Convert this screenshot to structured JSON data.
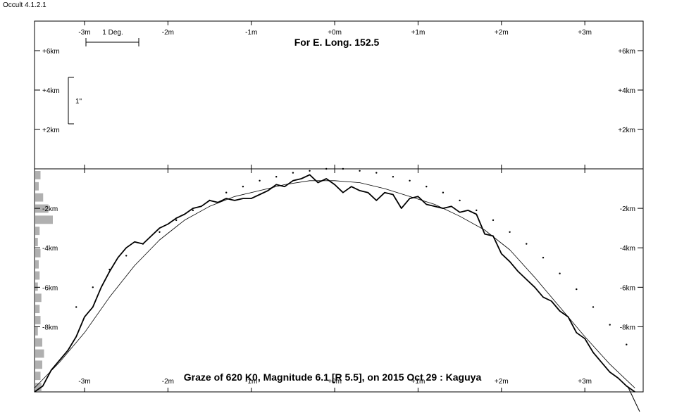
{
  "window": {
    "title": "Occult 4.1.2.1"
  },
  "chart_data": {
    "type": "line",
    "title": "For E. Long. 152.5",
    "footer": "Graze of  620 K0,  Magnitude 6.1 [R 5.5],  on 2015 Oct 29  :  Kaguya",
    "scale_bar_horizontal": "1 Deg.",
    "scale_bar_vertical": "1\"",
    "x_axis": {
      "unit": "minutes",
      "range": [
        -3.6,
        3.7
      ],
      "ticks": [
        -3,
        -2,
        -1,
        0,
        1,
        2,
        3
      ],
      "tick_labels": [
        "-3m",
        "-2m",
        "-1m",
        "+0m",
        "+1m",
        "+2m",
        "+3m"
      ]
    },
    "upper_panel": {
      "y_range_km": [
        0,
        7.5
      ],
      "ticks": [
        6,
        4,
        2
      ],
      "tick_labels": [
        "+6km",
        "+4km",
        "+2km"
      ]
    },
    "lower_panel": {
      "y_range_km": [
        0,
        -11.3
      ],
      "ticks": [
        -2,
        -4,
        -6,
        -8
      ],
      "tick_labels": [
        "-2km",
        "-4km",
        "-6km",
        "-8km"
      ]
    },
    "series": [
      {
        "style": "profile",
        "x": [
          -3.6,
          -3.5,
          -3.4,
          -3.3,
          -3.2,
          -3.1,
          -3.0,
          -2.9,
          -2.8,
          -2.7,
          -2.6,
          -2.5,
          -2.4,
          -2.3,
          -2.2,
          -2.1,
          -2.0,
          -1.9,
          -1.8,
          -1.7,
          -1.6,
          -1.5,
          -1.4,
          -1.3,
          -1.2,
          -1.1,
          -1.0,
          -0.9,
          -0.8,
          -0.7,
          -0.6,
          -0.5,
          -0.4,
          -0.3,
          -0.2,
          -0.1,
          0.0,
          0.1,
          0.2,
          0.3,
          0.4,
          0.5,
          0.6,
          0.7,
          0.8,
          0.9,
          1.0,
          1.1,
          1.2,
          1.3,
          1.4,
          1.5,
          1.6,
          1.7,
          1.8,
          1.9,
          2.0,
          2.1,
          2.2,
          2.3,
          2.4,
          2.5,
          2.6,
          2.7,
          2.8,
          2.9,
          3.0,
          3.1,
          3.2,
          3.3,
          3.4,
          3.5,
          3.6
        ],
        "y": [
          -11.3,
          -11.0,
          -10.2,
          -9.7,
          -9.2,
          -8.5,
          -7.5,
          -7.0,
          -6.0,
          -5.2,
          -4.5,
          -4.0,
          -3.7,
          -3.8,
          -3.4,
          -3.0,
          -2.8,
          -2.5,
          -2.3,
          -2.0,
          -1.9,
          -1.6,
          -1.7,
          -1.5,
          -1.6,
          -1.5,
          -1.5,
          -1.3,
          -1.1,
          -0.8,
          -0.9,
          -0.6,
          -0.5,
          -0.3,
          -0.7,
          -0.5,
          -0.8,
          -1.2,
          -0.9,
          -1.1,
          -1.2,
          -1.6,
          -1.2,
          -1.3,
          -2.0,
          -1.5,
          -1.4,
          -1.8,
          -1.9,
          -2.0,
          -1.9,
          -2.2,
          -2.1,
          -2.3,
          -3.3,
          -3.4,
          -4.3,
          -4.7,
          -5.2,
          -5.6,
          -6.0,
          -6.5,
          -6.7,
          -7.2,
          -7.5,
          -8.3,
          -8.6,
          -9.3,
          -9.8,
          -10.3,
          -10.6,
          -11.0,
          -11.3
        ]
      },
      {
        "style": "mean-limb",
        "x": [
          -3.6,
          -3.3,
          -3.0,
          -2.7,
          -2.4,
          -2.1,
          -1.8,
          -1.5,
          -1.2,
          -0.9,
          -0.6,
          -0.3,
          0.0,
          0.3,
          0.6,
          0.9,
          1.2,
          1.5,
          1.8,
          2.1,
          2.4,
          2.7,
          3.0,
          3.3,
          3.6
        ],
        "y": [
          -11.1,
          -9.8,
          -8.3,
          -6.5,
          -4.9,
          -3.6,
          -2.6,
          -1.9,
          -1.4,
          -1.1,
          -0.8,
          -0.6,
          -0.6,
          -0.7,
          -1.0,
          -1.4,
          -1.8,
          -2.4,
          -3.1,
          -4.1,
          -5.5,
          -7.0,
          -8.5,
          -9.9,
          -11.1
        ]
      },
      {
        "style": "dotted",
        "x": [
          -3.1,
          -2.9,
          -2.7,
          -2.5,
          -2.3,
          -2.1,
          -1.9,
          -1.7,
          -1.5,
          -1.3,
          -1.1,
          -0.9,
          -0.7,
          -0.5,
          -0.3,
          -0.1,
          0.1,
          0.3,
          0.5,
          0.7,
          0.9,
          1.1,
          1.3,
          1.5,
          1.7,
          1.9,
          2.1,
          2.3,
          2.5,
          2.7,
          2.9,
          3.1,
          3.3,
          3.5
        ],
        "y": [
          -7.0,
          -6.0,
          -5.1,
          -4.4,
          -3.8,
          -3.2,
          -2.6,
          -2.1,
          -1.6,
          -1.2,
          -0.9,
          -0.6,
          -0.4,
          -0.2,
          -0.1,
          0.0,
          0.0,
          -0.1,
          -0.2,
          -0.4,
          -0.6,
          -0.9,
          -1.2,
          -1.6,
          -2.1,
          -2.6,
          -3.2,
          -3.8,
          -4.5,
          -5.3,
          -6.1,
          -7.0,
          -7.9,
          -8.9
        ]
      }
    ],
    "histogram": {
      "values": [
        0.3,
        0.2,
        0.45,
        0.75,
        1.0,
        0.25,
        0.15,
        0.3,
        0.2,
        0.25,
        0.15,
        0.35,
        0.25,
        0.3,
        0.15,
        0.4,
        0.5,
        0.4,
        0.3,
        0.35
      ]
    },
    "grid": false,
    "legend": "none"
  }
}
